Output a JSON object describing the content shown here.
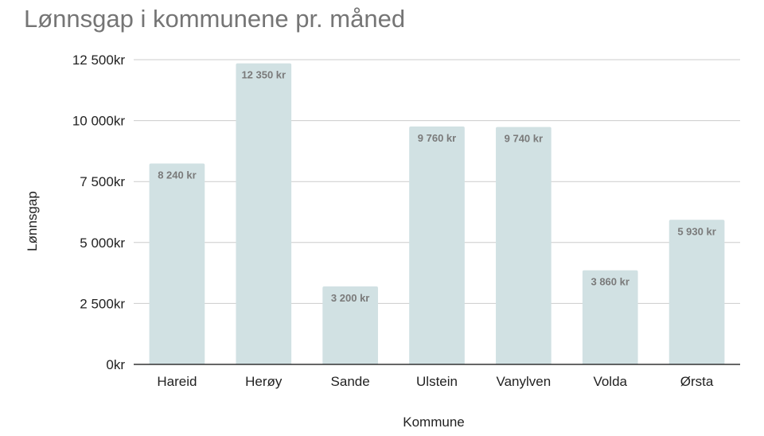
{
  "chart_data": {
    "type": "bar",
    "title": "Lønnsgap i kommunene pr. måned",
    "xlabel": "Kommune",
    "ylabel": "Lønnsgap",
    "categories": [
      "Hareid",
      "Herøy",
      "Sande",
      "Ulstein",
      "Vanylven",
      "Volda",
      "Ørsta"
    ],
    "values": [
      8240,
      12350,
      3200,
      9760,
      9740,
      3860,
      5930
    ],
    "data_labels": [
      "8 240 kr",
      "12 350 kr",
      "3 200 kr",
      "9 760 kr",
      "9 740 kr",
      "3 860 kr",
      "5 930 kr"
    ],
    "ylim": [
      0,
      12500
    ],
    "yticks": [
      0,
      2500,
      5000,
      7500,
      10000,
      12500
    ],
    "ytick_labels": [
      "0kr",
      "2 500kr",
      "5 000kr",
      "7 500kr",
      "10 000kr",
      "12 500kr"
    ],
    "grid": true,
    "legend": "none",
    "bar_color": "#d1e1e3",
    "gridline_color": "#cccccc",
    "title_color": "#757575"
  }
}
